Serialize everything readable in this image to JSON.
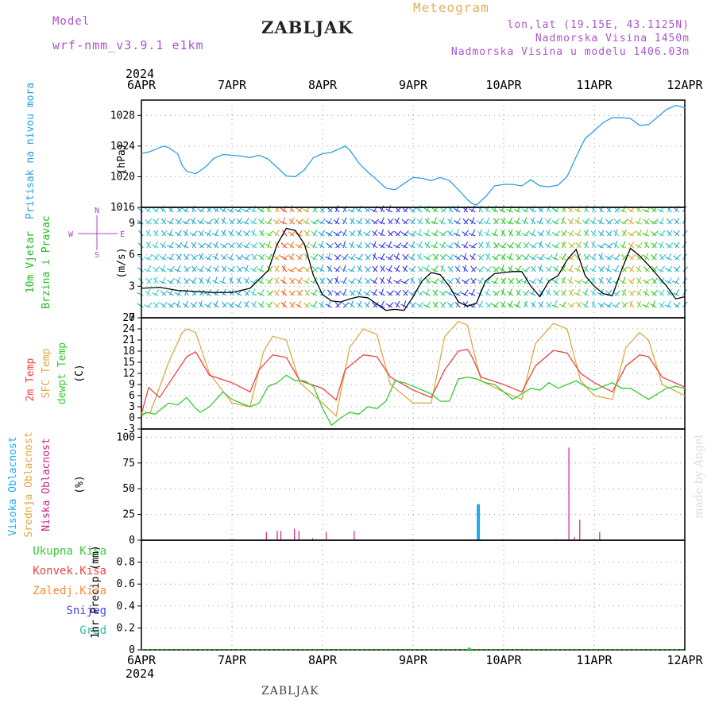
{
  "header": {
    "model_label": "Model",
    "model_name": "wrf-nmm_v3.9.1 e1km",
    "station": "ZABLJAK",
    "product": "Meteogram",
    "lonlat": "lon,lat (19.15E, 43.1125N)",
    "elevation": "Nadmorska Visina 1450m",
    "model_elevation": "Nadmorska Visina u modelu 1406.03m"
  },
  "footer": {
    "station": "ZABLJAK",
    "credit": "made by Angel"
  },
  "colors": {
    "pressure": "#29a0e0",
    "wind": "#22bb22",
    "t2m": "#ee4444",
    "tsfc": "#ddaa44",
    "dew": "#33cc33",
    "cloud_high": "#22aaee",
    "cloud_mid": "#ddaa44",
    "cloud_low": "#cc2288",
    "precip_total": "#33cc33",
    "precip_conv": "#ee4444",
    "precip_frz": "#ff8833",
    "precip_snow": "#4444ee",
    "precip_hail": "#33bbaa",
    "compass": "#aa44cc",
    "model": "#aa55cc",
    "meteogram": "#e0b060",
    "arrow_colors": [
      "#7733cc",
      "#3333ee",
      "#22aacc",
      "#33cccc",
      "#22cc22",
      "#88cc22",
      "#ddaa33",
      "#ee7722",
      "#ee3333"
    ]
  },
  "chart_data": [
    {
      "type": "line",
      "panel": "pressure",
      "ylabel_main": "Pritisak na nivou mora",
      "unit": "(hPa)",
      "top_year": "2024",
      "bottom_year": "2024",
      "date_ticks": [
        "6APR",
        "7APR",
        "8APR",
        "9APR",
        "10APR",
        "11APR",
        "12APR"
      ],
      "x_days": [
        0,
        6
      ],
      "ylim": [
        1016,
        1030
      ],
      "yticks": [
        1016,
        1020,
        1024,
        1028
      ],
      "series": [
        {
          "x": [
            0,
            0.1,
            0.2,
            0.25,
            0.3,
            0.4,
            0.45,
            0.5,
            0.6,
            0.7,
            0.8,
            0.9,
            1.0,
            1.1,
            1.2,
            1.3,
            1.4,
            1.5,
            1.6,
            1.7,
            1.8,
            1.9,
            2.0,
            2.1,
            2.2,
            2.25,
            2.3,
            2.4,
            2.5,
            2.6,
            2.7,
            2.8,
            2.9,
            3.0,
            3.1,
            3.2,
            3.3,
            3.4,
            3.5,
            3.6,
            3.65,
            3.7,
            3.8,
            3.9,
            4.0,
            4.1,
            4.2,
            4.3,
            4.4,
            4.5,
            4.6,
            4.7,
            4.8,
            4.9,
            5.0,
            5.1,
            5.2,
            5.3,
            5.4,
            5.5,
            5.6,
            5.7,
            5.8,
            5.9,
            6.0
          ],
          "y": [
            1023.0,
            1023.3,
            1023.8,
            1024.0,
            1023.8,
            1023.0,
            1021.5,
            1020.7,
            1020.4,
            1021.2,
            1022.4,
            1022.9,
            1022.8,
            1022.7,
            1022.5,
            1022.8,
            1022.3,
            1021.2,
            1020.1,
            1020.0,
            1020.9,
            1022.5,
            1023.0,
            1023.2,
            1023.7,
            1024.0,
            1023.5,
            1021.8,
            1020.6,
            1019.6,
            1018.5,
            1018.3,
            1019.1,
            1019.9,
            1019.8,
            1019.5,
            1019.9,
            1019.5,
            1018.3,
            1017.0,
            1016.5,
            1016.3,
            1017.4,
            1018.8,
            1019.0,
            1019.0,
            1018.8,
            1019.6,
            1018.8,
            1018.7,
            1018.9,
            1020.0,
            1022.6,
            1025.0,
            1026.0,
            1027.1,
            1027.7,
            1027.7,
            1027.6,
            1026.7,
            1026.8,
            1027.8,
            1028.8,
            1029.3,
            1029.0
          ]
        }
      ]
    },
    {
      "type": "line",
      "panel": "wind",
      "ylabel_main": "10m Vjetar",
      "ylabel_sub": "Brzina i Pravac",
      "unit": "(m/s)",
      "compass": {
        "N": "N",
        "S": "S",
        "W": "W",
        "E": "E"
      },
      "ylim": [
        0,
        10.5
      ],
      "yticks": [
        0,
        3,
        6,
        9
      ],
      "series": [
        {
          "name": "speed",
          "x": [
            0,
            0.2,
            0.4,
            0.6,
            0.8,
            1.0,
            1.2,
            1.4,
            1.5,
            1.6,
            1.7,
            1.8,
            1.9,
            2.0,
            2.1,
            2.2,
            2.3,
            2.4,
            2.5,
            2.6,
            2.7,
            2.8,
            2.9,
            3.0,
            3.1,
            3.2,
            3.3,
            3.4,
            3.5,
            3.6,
            3.7,
            3.8,
            3.9,
            4.0,
            4.1,
            4.2,
            4.3,
            4.4,
            4.5,
            4.6,
            4.7,
            4.8,
            4.9,
            5.0,
            5.1,
            5.2,
            5.3,
            5.4,
            5.5,
            5.6,
            5.7,
            5.8,
            5.9,
            6.0
          ],
          "y": [
            2.8,
            2.9,
            2.6,
            2.5,
            2.4,
            2.4,
            2.8,
            4.5,
            7.0,
            8.5,
            8.3,
            7.0,
            4.0,
            2.2,
            1.6,
            1.5,
            1.8,
            2.0,
            1.9,
            1.3,
            0.7,
            0.8,
            0.7,
            2.0,
            3.5,
            4.3,
            4.1,
            3.0,
            1.5,
            1.1,
            1.4,
            3.5,
            4.2,
            4.3,
            4.4,
            4.4,
            3.0,
            2.0,
            3.5,
            4.0,
            5.5,
            6.5,
            4.0,
            3.0,
            2.3,
            2.1,
            4.5,
            6.6,
            5.9,
            5.0,
            4.0,
            3.0,
            1.8,
            2.0
          ]
        }
      ]
    },
    {
      "type": "line",
      "panel": "temperature",
      "ylabel_t2m": "2m Temp",
      "ylabel_sfc": "SFC Temp",
      "ylabel_dew": "dewpt Temp",
      "unit": "(C)",
      "ylim": [
        -3,
        27
      ],
      "yticks": [
        -3,
        0,
        3,
        6,
        9,
        12,
        15,
        18,
        21,
        24,
        27
      ],
      "series": [
        {
          "name": "2m Temp",
          "x": [
            0,
            0.08,
            0.2,
            0.35,
            0.5,
            0.6,
            0.75,
            1.0,
            1.2,
            1.3,
            1.45,
            1.6,
            1.75,
            2.0,
            2.15,
            2.25,
            2.45,
            2.6,
            2.75,
            3.0,
            3.2,
            3.35,
            3.5,
            3.6,
            3.65,
            3.75,
            4.0,
            4.2,
            4.35,
            4.55,
            4.7,
            4.85,
            5.0,
            5.2,
            5.35,
            5.5,
            5.6,
            5.75,
            6.0
          ],
          "y": [
            1.0,
            8.2,
            5.5,
            11.0,
            16.5,
            17.8,
            11.5,
            9.5,
            7.0,
            13.0,
            17.0,
            16.3,
            10.0,
            8.0,
            4.8,
            13.0,
            17.0,
            16.5,
            11.0,
            7.5,
            5.5,
            13.0,
            18.0,
            18.5,
            16.5,
            11.0,
            9.0,
            7.0,
            14.0,
            18.2,
            17.5,
            12.0,
            9.5,
            7.0,
            14.0,
            17.0,
            16.5,
            11.0,
            8.3
          ]
        },
        {
          "name": "SFC Temp",
          "x": [
            0,
            0.1,
            0.3,
            0.45,
            0.5,
            0.6,
            0.75,
            1.0,
            1.2,
            1.35,
            1.45,
            1.6,
            1.75,
            2.0,
            2.15,
            2.3,
            2.45,
            2.6,
            2.75,
            3.0,
            3.2,
            3.35,
            3.5,
            3.6,
            3.65,
            3.75,
            4.0,
            4.2,
            4.35,
            4.55,
            4.7,
            4.85,
            5.0,
            5.2,
            5.35,
            5.5,
            5.6,
            5.75,
            6.0
          ],
          "y": [
            1.0,
            1.5,
            15.0,
            23.0,
            24.0,
            23.0,
            12.0,
            4.0,
            3.0,
            18.0,
            22.0,
            21.0,
            9.5,
            4.0,
            0.5,
            19.0,
            24.0,
            22.5,
            9.0,
            4.0,
            4.0,
            22.0,
            26.0,
            25.0,
            20.0,
            10.0,
            7.0,
            5.0,
            20.0,
            25.5,
            24.0,
            10.0,
            6.0,
            5.0,
            19.0,
            23.0,
            21.0,
            9.0,
            6.0
          ]
        },
        {
          "name": "dewpt Temp",
          "x": [
            0,
            0.05,
            0.15,
            0.3,
            0.4,
            0.5,
            0.6,
            0.65,
            0.75,
            0.9,
            1.0,
            1.2,
            1.3,
            1.4,
            1.5,
            1.6,
            1.7,
            1.8,
            1.9,
            2.0,
            2.1,
            2.2,
            2.3,
            2.4,
            2.5,
            2.6,
            2.7,
            2.8,
            2.9,
            3.0,
            3.1,
            3.2,
            3.3,
            3.4,
            3.5,
            3.6,
            3.7,
            3.8,
            3.9,
            4.0,
            4.1,
            4.2,
            4.3,
            4.4,
            4.5,
            4.6,
            4.7,
            4.8,
            4.9,
            5.0,
            5.1,
            5.2,
            5.3,
            5.4,
            5.5,
            5.6,
            5.7,
            5.8,
            5.9,
            6.0
          ],
          "y": [
            0.5,
            1.5,
            1.0,
            4.0,
            3.5,
            5.5,
            2.5,
            1.5,
            3.0,
            7.0,
            5.0,
            3.0,
            4.0,
            8.5,
            9.5,
            11.5,
            10.0,
            10.0,
            8.5,
            2.5,
            -2.0,
            0.0,
            1.5,
            1.0,
            3.0,
            2.5,
            4.5,
            10.0,
            9.5,
            8.5,
            7.5,
            6.5,
            4.5,
            4.5,
            10.5,
            11.0,
            10.5,
            9.5,
            9.0,
            7.0,
            5.0,
            6.5,
            8.0,
            7.5,
            9.5,
            8.0,
            9.0,
            10.0,
            8.5,
            7.5,
            8.5,
            9.5,
            8.0,
            8.0,
            6.5,
            5.0,
            6.5,
            8.0,
            8.5,
            8.0
          ]
        }
      ]
    },
    {
      "type": "bar",
      "panel": "clouds",
      "ylabel_high": "Visoka Oblacnost",
      "ylabel_mid": "Srednja Oblacnost",
      "ylabel_low": "Niska Oblacnost",
      "unit": "(%)",
      "ylim": [
        0,
        108
      ],
      "yticks": [
        0,
        25,
        50,
        75,
        100
      ],
      "series": [
        {
          "name": "Niska Oblacnost",
          "x": [
            1.38,
            1.5,
            1.54,
            1.69,
            1.74,
            1.89,
            2.04,
            2.35,
            4.58,
            4.65,
            4.72,
            4.78,
            4.84,
            5.06
          ],
          "y": [
            8,
            9,
            9,
            11,
            9,
            2,
            8,
            9,
            1,
            1,
            90,
            3,
            20,
            8
          ]
        },
        {
          "name": "Visoka Oblacnost",
          "x": [
            3.72
          ],
          "y": [
            35
          ]
        }
      ]
    },
    {
      "type": "bar",
      "panel": "precip",
      "legend": [
        "Ukupna Kisa",
        "Konvek.Kisa",
        "Zaledj.Kisa",
        "Snijeg",
        "Grad"
      ],
      "ylabel": "1hr Precip (mm)",
      "ylim": [
        0,
        1.0
      ],
      "yticks": [
        0,
        0.2,
        0.4,
        0.6,
        0.8
      ],
      "series": [
        {
          "name": "Ukupna Kisa",
          "x": [
            3.62
          ],
          "y": [
            0.02
          ]
        }
      ]
    }
  ]
}
